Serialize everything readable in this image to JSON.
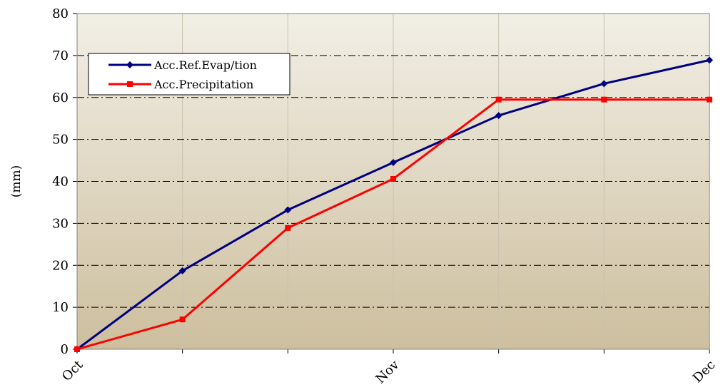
{
  "chart_data": {
    "type": "line",
    "title": "",
    "xlabel": "",
    "ylabel": "(mm)",
    "ylim": [
      0,
      80
    ],
    "yticks": [
      0,
      10,
      20,
      30,
      40,
      50,
      60,
      70,
      80
    ],
    "x_points": 7,
    "x_tick_labels": [
      {
        "index": 0,
        "label": "Oct"
      },
      {
        "index": 3,
        "label": "Nov"
      },
      {
        "index": 6,
        "label": "Dec"
      }
    ],
    "grid": true,
    "legend_position": "top-left",
    "series": [
      {
        "name": "Acc.Ref.Evap/tion",
        "color": "#000080",
        "marker": "diamond",
        "values": [
          0,
          18.7,
          33.2,
          44.5,
          55.7,
          63.3,
          68.9
        ]
      },
      {
        "name": "Acc.Precipitation",
        "color": "#ff0000",
        "marker": "square",
        "values": [
          0,
          7.1,
          28.9,
          40.6,
          59.5,
          59.5,
          59.5
        ]
      }
    ]
  },
  "colors": {
    "plot_bg_top": "#f2efe6",
    "plot_bg_bottom": "#cdbf9e",
    "grid_line": "#000000",
    "vertical_grid": "#c8c2b0"
  }
}
